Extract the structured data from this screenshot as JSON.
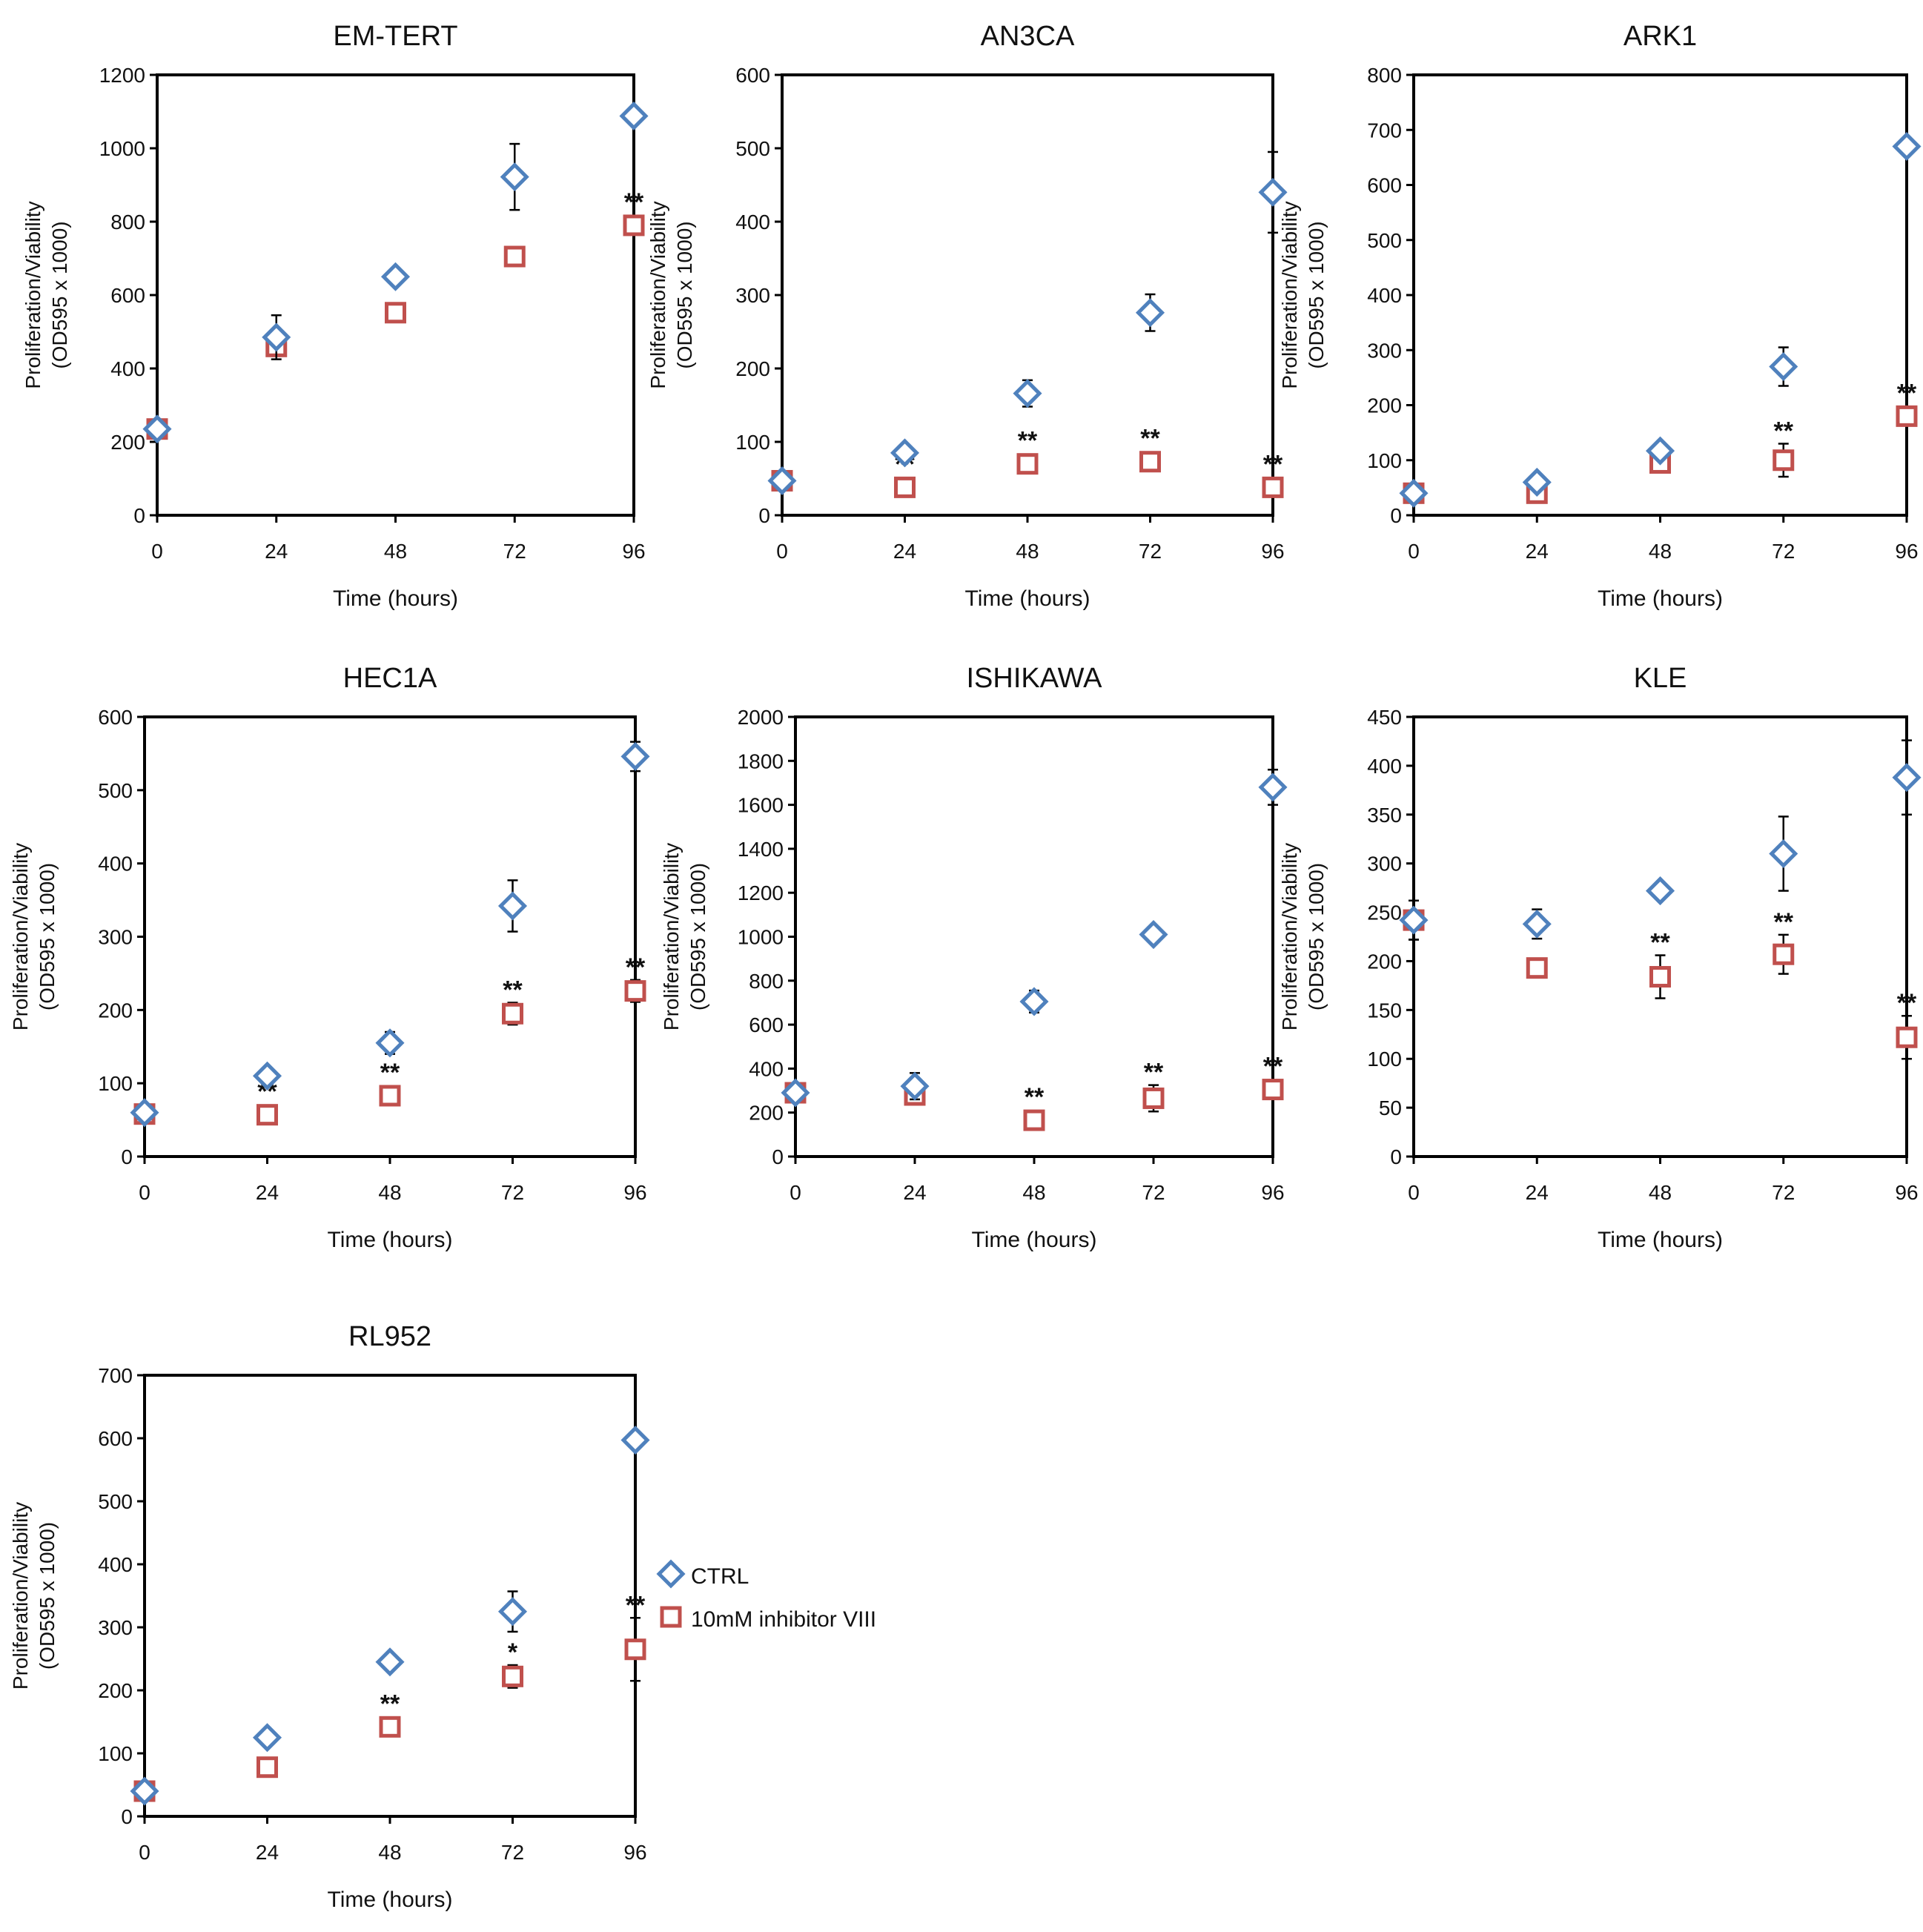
{
  "colors": {
    "ctrl": "#4F81BD",
    "inhibitor": "#C0504D",
    "axis": "#000000",
    "text": "#111111"
  },
  "legend": {
    "ctrl_label": "CTRL",
    "inhibitor_label": "10mM inhibitor VIII",
    "ctrl_marker": "diamond-marker",
    "inhibitor_marker": "square-marker"
  },
  "chart_data": [
    {
      "type": "scatter",
      "title": "EM-TERT",
      "xlabel": "Time (hours)",
      "ylabel_line1": "Proliferation/Viability",
      "ylabel_line2": "(OD595 x 1000)",
      "x": [
        0,
        24,
        48,
        72,
        96
      ],
      "xticks": [
        "0",
        "24",
        "48",
        "72",
        "96"
      ],
      "ylim": [
        0,
        1200
      ],
      "yticks": [
        "0",
        "200",
        "400",
        "600",
        "800",
        "1000",
        "1200"
      ],
      "series": [
        {
          "name": "CTRL",
          "values": [
            235,
            485,
            650,
            922,
            1088
          ],
          "errors": [
            15,
            60,
            10,
            90,
            10
          ],
          "marks": [
            "",
            "",
            "",
            "",
            ""
          ]
        },
        {
          "name": "10mM inhibitor VIII",
          "values": [
            235,
            460,
            552,
            705,
            790
          ],
          "errors": [
            15,
            25,
            10,
            10,
            10
          ],
          "marks": [
            "",
            "",
            "",
            "",
            "**"
          ]
        }
      ]
    },
    {
      "type": "scatter",
      "title": "AN3CA",
      "xlabel": "Time (hours)",
      "ylabel_line1": "Proliferation/Viability",
      "ylabel_line2": "(OD595 x 1000)",
      "x": [
        0,
        24,
        48,
        72,
        96
      ],
      "xticks": [
        "0",
        "24",
        "48",
        "72",
        "96"
      ],
      "ylim": [
        0,
        600
      ],
      "yticks": [
        "0",
        "100",
        "200",
        "300",
        "400",
        "500",
        "600"
      ],
      "series": [
        {
          "name": "CTRL",
          "values": [
            47,
            85,
            166,
            276,
            440
          ],
          "errors": [
            5,
            5,
            18,
            25,
            55
          ],
          "marks": [
            "",
            "",
            "",
            "",
            ""
          ]
        },
        {
          "name": "10mM inhibitor VIII",
          "values": [
            47,
            38,
            70,
            73,
            38
          ],
          "errors": [
            5,
            5,
            5,
            5,
            5
          ],
          "marks": [
            "",
            "**",
            "**",
            "**",
            "**"
          ]
        }
      ]
    },
    {
      "type": "scatter",
      "title": "ARK1",
      "xlabel": "Time (hours)",
      "ylabel_line1": "Proliferation/Viability",
      "ylabel_line2": "(OD595 x 1000)",
      "x": [
        0,
        24,
        48,
        72,
        96
      ],
      "xticks": [
        "0",
        "24",
        "48",
        "72",
        "96"
      ],
      "ylim": [
        0,
        800
      ],
      "yticks": [
        "0",
        "100",
        "200",
        "300",
        "400",
        "500",
        "600",
        "700",
        "800"
      ],
      "series": [
        {
          "name": "CTRL",
          "values": [
            40,
            60,
            117,
            270,
            670
          ],
          "errors": [
            5,
            5,
            10,
            35,
            10
          ],
          "marks": [
            "",
            "",
            "",
            "",
            ""
          ]
        },
        {
          "name": "10mM inhibitor VIII",
          "values": [
            40,
            40,
            95,
            100,
            180
          ],
          "errors": [
            5,
            5,
            10,
            30,
            10
          ],
          "marks": [
            "",
            "",
            "",
            "**",
            "**"
          ]
        }
      ]
    },
    {
      "type": "scatter",
      "title": "HEC1A",
      "xlabel": "Time (hours)",
      "ylabel_line1": "Proliferation/Viability",
      "ylabel_line2": "(OD595 x 1000)",
      "x": [
        0,
        24,
        48,
        72,
        96
      ],
      "xticks": [
        "0",
        "24",
        "48",
        "72",
        "96"
      ],
      "ylim": [
        0,
        600
      ],
      "yticks": [
        "0",
        "100",
        "200",
        "300",
        "400",
        "500",
        "600"
      ],
      "series": [
        {
          "name": "CTRL",
          "values": [
            60,
            110,
            155,
            342,
            546
          ],
          "errors": [
            5,
            5,
            15,
            35,
            20
          ],
          "marks": [
            "",
            "",
            "",
            "",
            ""
          ]
        },
        {
          "name": "10mM inhibitor VIII",
          "values": [
            58,
            57,
            83,
            195,
            226
          ],
          "errors": [
            5,
            5,
            5,
            15,
            15
          ],
          "marks": [
            "",
            "**",
            "**",
            "**",
            "**"
          ]
        }
      ]
    },
    {
      "type": "scatter",
      "title": "ISHIKAWA",
      "xlabel": "Time (hours)",
      "ylabel_line1": "Proliferation/Viability",
      "ylabel_line2": "(OD595 x 1000)",
      "x": [
        0,
        24,
        48,
        72,
        96
      ],
      "xticks": [
        "0",
        "24",
        "48",
        "72",
        "96"
      ],
      "ylim": [
        0,
        2000
      ],
      "yticks": [
        "0",
        "200",
        "400",
        "600",
        "800",
        "1000",
        "1200",
        "1400",
        "1600",
        "1800",
        "2000"
      ],
      "series": [
        {
          "name": "CTRL",
          "values": [
            290,
            320,
            705,
            1010,
            1680
          ],
          "errors": [
            20,
            60,
            50,
            20,
            80
          ],
          "marks": [
            "",
            "",
            "",
            "",
            ""
          ]
        },
        {
          "name": "10mM inhibitor VIII",
          "values": [
            290,
            280,
            165,
            265,
            305
          ],
          "errors": [
            20,
            20,
            15,
            60,
            15
          ],
          "marks": [
            "",
            "",
            "**",
            "**",
            "**"
          ]
        }
      ]
    },
    {
      "type": "scatter",
      "title": "KLE",
      "xlabel": "Time (hours)",
      "ylabel_line1": "Proliferation/Viability",
      "ylabel_line2": "(OD595 x 1000)",
      "x": [
        0,
        24,
        48,
        72,
        96
      ],
      "xticks": [
        "0",
        "24",
        "48",
        "72",
        "96"
      ],
      "ylim": [
        0,
        450
      ],
      "yticks": [
        "0",
        "50",
        "100",
        "150",
        "200",
        "250",
        "300",
        "350",
        "400",
        "450"
      ],
      "series": [
        {
          "name": "CTRL",
          "values": [
            242,
            238,
            272,
            310,
            388
          ],
          "errors": [
            20,
            15,
            5,
            38,
            38
          ],
          "marks": [
            "",
            "",
            "",
            "",
            ""
          ]
        },
        {
          "name": "10mM inhibitor VIII",
          "values": [
            242,
            193,
            184,
            207,
            122
          ],
          "errors": [
            20,
            5,
            22,
            20,
            22
          ],
          "marks": [
            "",
            "",
            "**",
            "**",
            "**"
          ]
        }
      ]
    },
    {
      "type": "scatter",
      "title": "RL952",
      "xlabel": "Time (hours)",
      "ylabel_line1": "Proliferation/Viability",
      "ylabel_line2": "(OD595 x 1000)",
      "x": [
        0,
        24,
        48,
        72,
        96
      ],
      "xticks": [
        "0",
        "24",
        "48",
        "72",
        "96"
      ],
      "ylim": [
        0,
        700
      ],
      "yticks": [
        "0",
        "100",
        "200",
        "300",
        "400",
        "500",
        "600",
        "700"
      ],
      "series": [
        {
          "name": "CTRL",
          "values": [
            40,
            125,
            245,
            325,
            597
          ],
          "errors": [
            5,
            5,
            5,
            32,
            5
          ],
          "marks": [
            "",
            "",
            "",
            "",
            ""
          ]
        },
        {
          "name": "10mM inhibitor VIII",
          "values": [
            40,
            78,
            142,
            222,
            265
          ],
          "errors": [
            5,
            5,
            5,
            18,
            50
          ],
          "marks": [
            "",
            "",
            "**",
            "*",
            "**"
          ]
        }
      ]
    }
  ]
}
